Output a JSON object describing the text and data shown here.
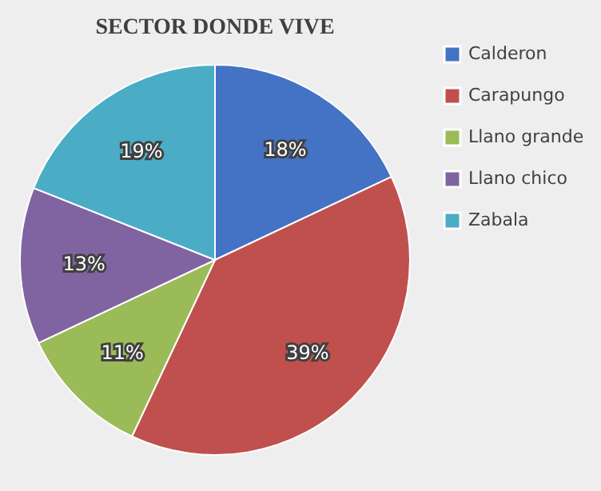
{
  "chart_data": {
    "type": "pie",
    "title": "SECTOR DONDE VIVE",
    "categories": [
      "Calderon",
      "Carapungo",
      "Llano grande",
      "Llano chico",
      "Zabala"
    ],
    "values": [
      18,
      39,
      11,
      13,
      19
    ],
    "value_labels": [
      "18%",
      "39%",
      "11%",
      "13%",
      "19%"
    ],
    "colors": [
      "#4472c4",
      "#c0504d",
      "#9bbb59",
      "#8064a2",
      "#4bacc6"
    ],
    "legend": "right"
  }
}
